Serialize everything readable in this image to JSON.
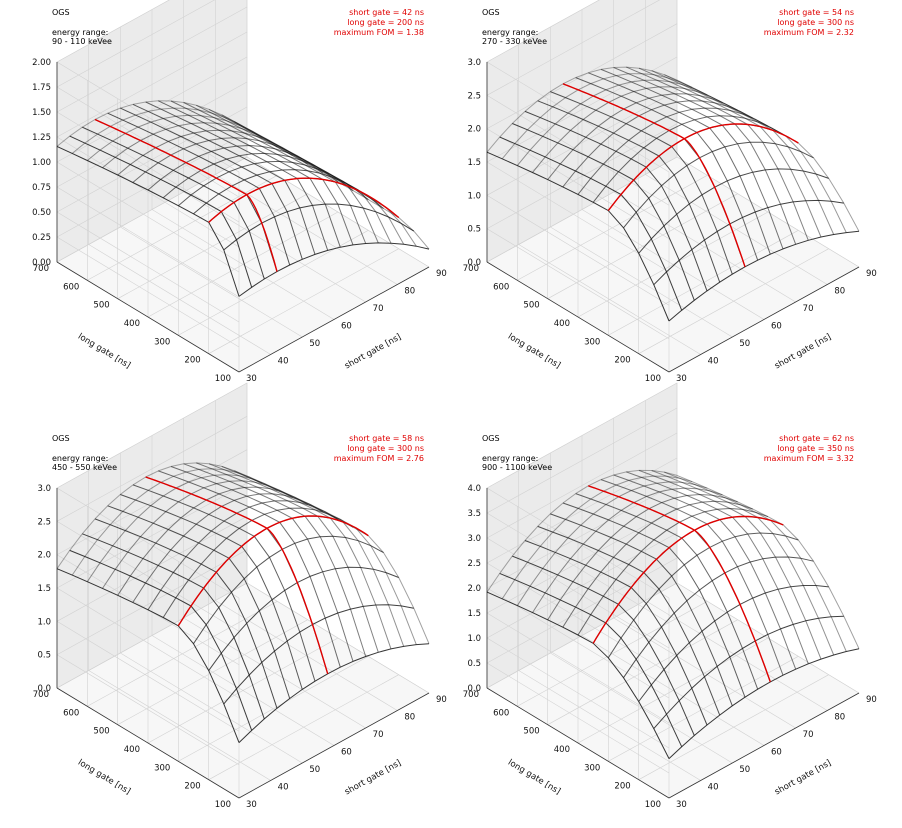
{
  "chart_data": [
    {
      "type": "surface3d",
      "dataset": "OGS",
      "energy_range_label": "energy range:",
      "energy_range": "90 - 110 keVee",
      "best_short_label": "short gate = 42 ns",
      "best_long_label": "long gate = 200 ns",
      "best_fom_label": "maximum FOM = 1.38",
      "best_short": 42,
      "best_long": 200,
      "z_max": 1.38,
      "z_ticks": [
        "0.00",
        "0.25",
        "0.50",
        "0.75",
        "1.00",
        "1.25",
        "1.50",
        "1.75",
        "2.00"
      ],
      "zlim": [
        0,
        2.0
      ],
      "x_ticks": [
        "30",
        "40",
        "50",
        "60",
        "70",
        "80",
        "90"
      ],
      "y_ticks": [
        "100",
        "200",
        "300",
        "400",
        "500",
        "600",
        "700"
      ],
      "xlabel": "short gate [ns]",
      "ylabel": "long gate [ns]",
      "xlim": [
        30,
        90
      ],
      "ylim": [
        100,
        700
      ]
    },
    {
      "type": "surface3d",
      "dataset": "OGS",
      "energy_range_label": "energy range:",
      "energy_range": "270 - 330 keVee",
      "best_short_label": "short gate = 54 ns",
      "best_long_label": "long gate = 300 ns",
      "best_fom_label": "maximum FOM = 2.32",
      "best_short": 54,
      "best_long": 300,
      "z_max": 2.32,
      "z_ticks": [
        "0.0",
        "0.5",
        "1.0",
        "1.5",
        "2.0",
        "2.5",
        "3.0"
      ],
      "zlim": [
        0,
        3.0
      ],
      "x_ticks": [
        "30",
        "40",
        "50",
        "60",
        "70",
        "80",
        "90"
      ],
      "y_ticks": [
        "100",
        "200",
        "300",
        "400",
        "500",
        "600",
        "700"
      ],
      "xlabel": "short gate [ns]",
      "ylabel": "long gate [ns]",
      "xlim": [
        30,
        90
      ],
      "ylim": [
        100,
        700
      ]
    },
    {
      "type": "surface3d",
      "dataset": "OGS",
      "energy_range_label": "energy range:",
      "energy_range": "450 - 550 keVee",
      "best_short_label": "short gate = 58 ns",
      "best_long_label": "long gate = 300 ns",
      "best_fom_label": "maximum FOM = 2.76",
      "best_short": 58,
      "best_long": 300,
      "z_max": 2.76,
      "z_ticks": [
        "0.0",
        "0.5",
        "1.0",
        "1.5",
        "2.0",
        "2.5",
        "3.0"
      ],
      "zlim": [
        0,
        3.0
      ],
      "x_ticks": [
        "30",
        "40",
        "50",
        "60",
        "70",
        "80",
        "90"
      ],
      "y_ticks": [
        "100",
        "200",
        "300",
        "400",
        "500",
        "600",
        "700"
      ],
      "xlabel": "short gate [ns]",
      "ylabel": "long gate [ns]",
      "xlim": [
        30,
        90
      ],
      "ylim": [
        100,
        700
      ]
    },
    {
      "type": "surface3d",
      "dataset": "OGS",
      "energy_range_label": "energy range:",
      "energy_range": "900 - 1100 keVee",
      "best_short_label": "short gate = 62 ns",
      "best_long_label": "long gate = 350 ns",
      "best_fom_label": "maximum FOM = 3.32",
      "best_short": 62,
      "best_long": 350,
      "z_max": 3.32,
      "z_ticks": [
        "0.0",
        "0.5",
        "1.0",
        "1.5",
        "2.0",
        "2.5",
        "3.0",
        "3.5",
        "4.0"
      ],
      "zlim": [
        0,
        4.0
      ],
      "x_ticks": [
        "30",
        "40",
        "50",
        "60",
        "70",
        "80",
        "90"
      ],
      "y_ticks": [
        "100",
        "200",
        "300",
        "400",
        "500",
        "600",
        "700"
      ],
      "xlabel": "short gate [ns]",
      "ylabel": "long gate [ns]",
      "xlim": [
        30,
        90
      ],
      "ylim": [
        100,
        700
      ]
    }
  ]
}
